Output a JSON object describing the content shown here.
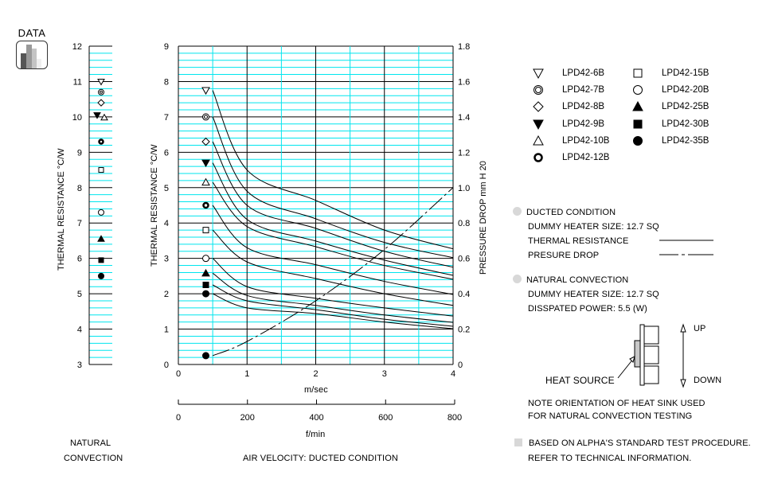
{
  "logo": {
    "label": "DATA",
    "icon": "bar-chart-icon"
  },
  "natural_panel": {
    "ylabel": "THERMAL RESISTANCE  °C/W",
    "yticks": [
      "3",
      "4",
      "5",
      "6",
      "7",
      "8",
      "9",
      "10",
      "11",
      "12"
    ],
    "caption_line1": "NATURAL",
    "caption_line2": "CONVECTION"
  },
  "main_chart": {
    "ylabel_left": "THERMAL RESISTANCE  °C/W",
    "ylabel_right": "PRESSURE DROP  mm H 20",
    "yticks_left": [
      "0",
      "1",
      "2",
      "3",
      "4",
      "5",
      "6",
      "7",
      "8",
      "9"
    ],
    "yticks_right": [
      "0",
      "0.2",
      "0.4",
      "0.6",
      "0.8",
      "1.0",
      "1.2",
      "1.4",
      "1.6",
      "1.8"
    ],
    "xticks_ms": [
      "0",
      "1",
      "2",
      "3",
      "4"
    ],
    "xlabel_ms": "m/sec",
    "xticks_fmin": [
      "0",
      "200",
      "400",
      "600",
      "800"
    ],
    "xlabel_fmin": "f/min",
    "caption": "AIR VELOCITY:  DUCTED CONDITION"
  },
  "legend": {
    "items": [
      {
        "label": "LPD42-6B",
        "symbol": "triangle-down-open"
      },
      {
        "label": "LPD42-7B",
        "symbol": "double-circle"
      },
      {
        "label": "LPD42-8B",
        "symbol": "diamond-open"
      },
      {
        "label": "LPD42-9B",
        "symbol": "triangle-down-filled"
      },
      {
        "label": "LPD42-10B",
        "symbol": "triangle-up-open"
      },
      {
        "label": "LPD42-12B",
        "symbol": "ring-bold"
      },
      {
        "label": "LPD42-15B",
        "symbol": "square-open"
      },
      {
        "label": "LPD42-20B",
        "symbol": "circle-open"
      },
      {
        "label": "LPD42-25B",
        "symbol": "triangle-up-filled"
      },
      {
        "label": "LPD42-30B",
        "symbol": "square-filled"
      },
      {
        "label": "LPD42-35B",
        "symbol": "circle-filled"
      }
    ]
  },
  "notes": {
    "ducted_title": "DUCTED CONDITION",
    "ducted_heater": "DUMMY HEATER SIZE: 12.7 SQ",
    "thermal_resistance": "THERMAL RESISTANCE",
    "pressure_drop": "PRESURE DROP",
    "natural_title": "NATURAL CONVECTION",
    "natural_heater": "DUMMY HEATER SIZE: 12.7 SQ",
    "natural_power": "DISSPATED POWER: 5.5 (W)",
    "diagram_up": "UP",
    "diagram_down": "DOWN",
    "heat_source": "HEAT SOURCE",
    "orientation_line1": "NOTE ORIENTATION OF HEAT SINK USED",
    "orientation_line2": "FOR NATURAL CONVECTION TESTING",
    "procedure_line1": "BASED ON ALPHA'S STANDARD TEST PROCEDURE.",
    "procedure_line2": "REFER TO TECHNICAL INFORMATION."
  },
  "colors": {
    "grid_minor": "#00e5ee",
    "grid_major": "#000000",
    "bullet": "#d8d8d8"
  },
  "chart_data": [
    {
      "type": "scatter",
      "title": "Natural Convection",
      "ylabel": "THERMAL RESISTANCE °C/W",
      "ylim": [
        3,
        12
      ],
      "grid": true,
      "series": [
        {
          "name": "LPD42-6B",
          "value": 11.0
        },
        {
          "name": "LPD42-7B",
          "value": 10.7
        },
        {
          "name": "LPD42-8B",
          "value": 10.4
        },
        {
          "name": "LPD42-9B",
          "value": 10.05
        },
        {
          "name": "LPD42-10B",
          "value": 9.98
        },
        {
          "name": "LPD42-12B",
          "value": 9.3
        },
        {
          "name": "LPD42-15B",
          "value": 8.5
        },
        {
          "name": "LPD42-20B",
          "value": 7.3
        },
        {
          "name": "LPD42-25B",
          "value": 6.55
        },
        {
          "name": "LPD42-30B",
          "value": 5.95
        },
        {
          "name": "LPD42-35B",
          "value": 5.5
        }
      ]
    },
    {
      "type": "line",
      "title": "Ducted Condition",
      "xlabel": "m/sec",
      "xlabel_secondary": "f/min",
      "ylabel": "THERMAL RESISTANCE °C/W",
      "ylabel_right": "PRESSURE DROP mm H2O",
      "xlim": [
        0,
        4
      ],
      "ylim": [
        0,
        9
      ],
      "ylim_right": [
        0,
        1.8
      ],
      "grid": true,
      "x": [
        0.5,
        1,
        2,
        3,
        4
      ],
      "series": [
        {
          "name": "LPD42-6B",
          "natural_marker_at_x0_4": 7.75,
          "values": [
            7.75,
            5.5,
            4.64,
            3.8,
            3.27
          ]
        },
        {
          "name": "LPD42-7B",
          "natural_marker_at_x0_4": 7.0,
          "values": [
            7.0,
            4.9,
            4.12,
            3.45,
            3.02
          ]
        },
        {
          "name": "LPD42-8B",
          "natural_marker_at_x0_4": 6.3,
          "values": [
            6.3,
            4.5,
            3.85,
            3.2,
            2.75
          ]
        },
        {
          "name": "LPD42-9B",
          "natural_marker_at_x0_4": 5.7,
          "values": [
            5.7,
            4.1,
            3.49,
            2.95,
            2.52
          ]
        },
        {
          "name": "LPD42-10B",
          "natural_marker_at_x0_4": 5.15,
          "values": [
            5.15,
            3.9,
            3.33,
            2.8,
            2.41
          ]
        },
        {
          "name": "LPD42-12B",
          "natural_marker_at_x0_4": 4.5,
          "values": [
            4.5,
            3.3,
            2.82,
            2.35,
            1.98
          ]
        },
        {
          "name": "LPD42-15B",
          "natural_marker_at_x0_4": 3.8,
          "values": [
            3.8,
            2.9,
            2.43,
            2.0,
            1.67
          ]
        },
        {
          "name": "LPD42-20B",
          "natural_marker_at_x0_4": 3.0,
          "values": [
            3.0,
            2.2,
            1.87,
            1.6,
            1.37
          ]
        },
        {
          "name": "LPD42-25B",
          "natural_marker_at_x0_4": 2.58,
          "values": [
            2.58,
            1.95,
            1.67,
            1.4,
            1.19
          ]
        },
        {
          "name": "LPD42-30B",
          "natural_marker_at_x0_4": 2.25,
          "values": [
            2.25,
            1.8,
            1.55,
            1.28,
            1.08
          ]
        },
        {
          "name": "LPD42-35B",
          "natural_marker_at_x0_4": 2.0,
          "values": [
            2.0,
            1.6,
            1.44,
            1.2,
            1.01
          ]
        },
        {
          "name": "Pressure Drop",
          "axis": "right",
          "style": "dash-dot",
          "values": [
            0.05,
            0.13,
            0.36,
            0.65,
            1.0
          ]
        }
      ]
    }
  ]
}
